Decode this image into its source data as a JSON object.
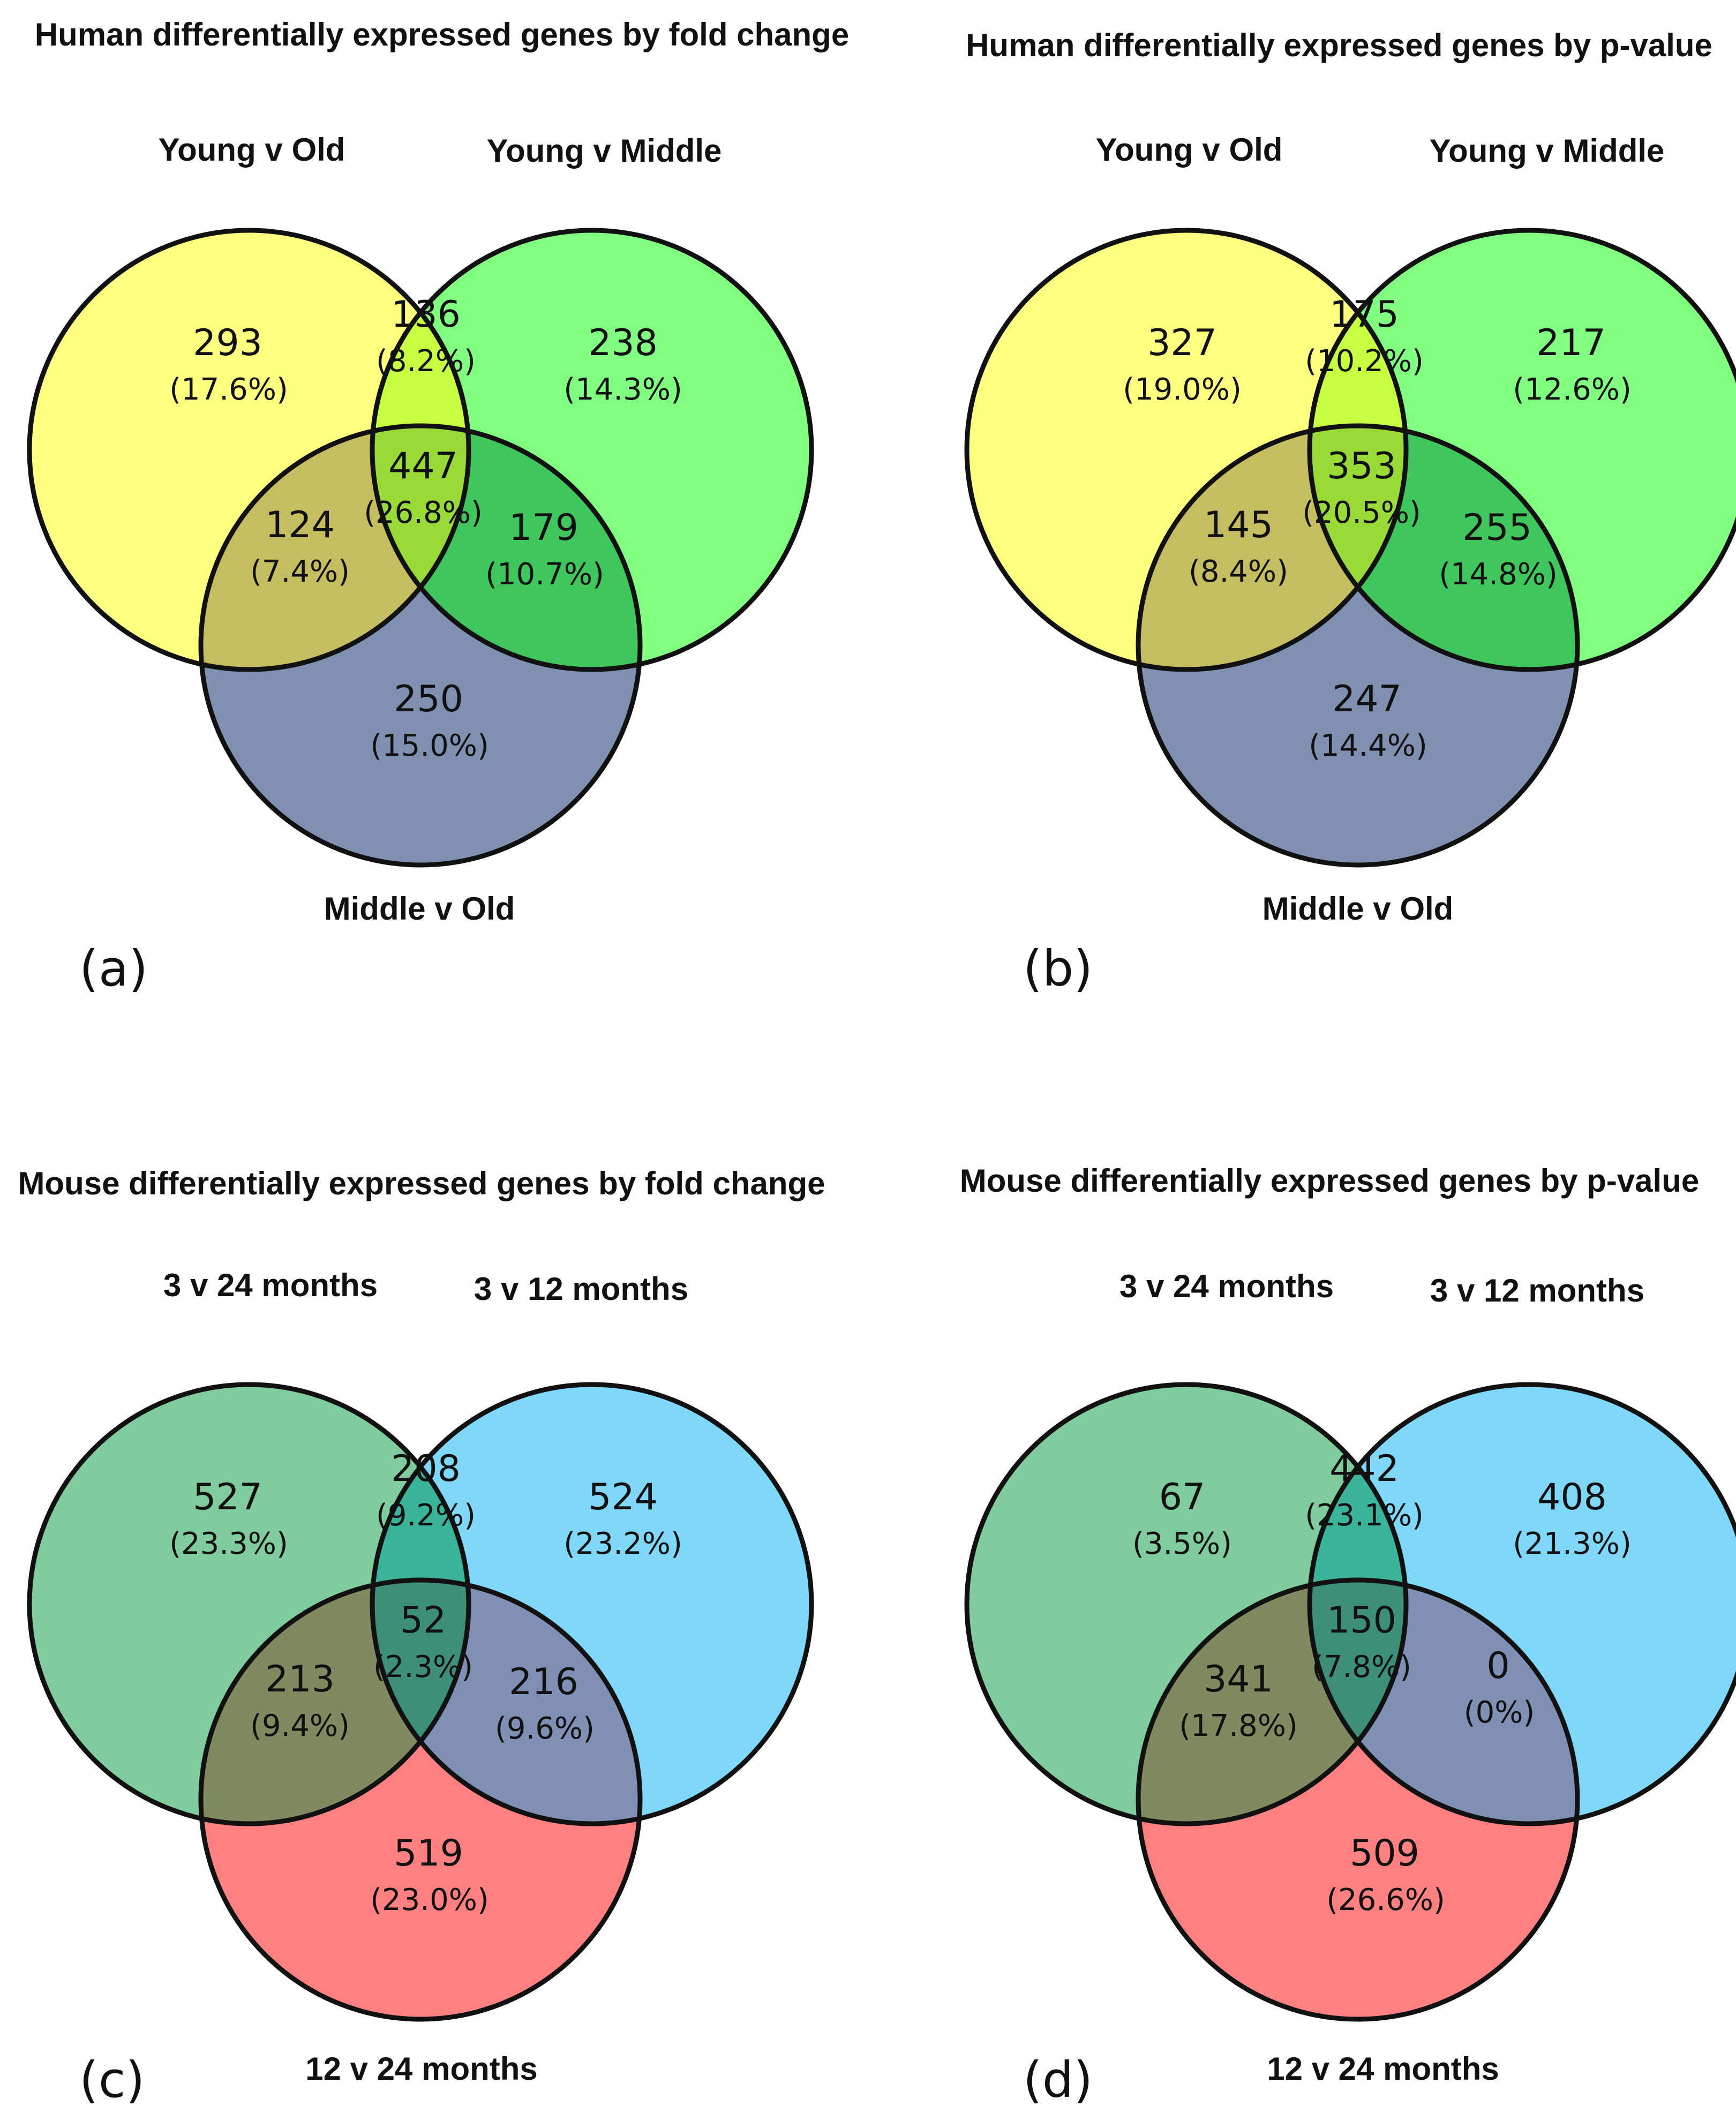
{
  "panels": [
    {
      "id": "a",
      "label": "(a)",
      "title": "Human differentially expressed genes by fold change",
      "sets": [
        {
          "name": "Young v Old",
          "color": "#ffff80"
        },
        {
          "name": "Young v Middle",
          "color": "#80ff80"
        },
        {
          "name": "Middle v Old",
          "color": "#8090b0"
        }
      ],
      "regions": {
        "a_only": {
          "count": "293",
          "pct": "(17.6%)"
        },
        "b_only": {
          "count": "238",
          "pct": "(14.3%)"
        },
        "c_only": {
          "count": "250",
          "pct": "(15.0%)"
        },
        "ab": {
          "count": "136",
          "pct": "(8.2%)"
        },
        "ac": {
          "count": "124",
          "pct": "(7.4%)"
        },
        "bc": {
          "count": "179",
          "pct": "(10.7%)"
        },
        "abc": {
          "count": "447",
          "pct": "(26.8%)"
        }
      }
    },
    {
      "id": "b",
      "label": "(b)",
      "title": "Human differentially expressed genes by p-value",
      "sets": [
        {
          "name": "Young v Old",
          "color": "#ffff80"
        },
        {
          "name": "Young v Middle",
          "color": "#80ff80"
        },
        {
          "name": "Middle v Old",
          "color": "#8090b0"
        }
      ],
      "regions": {
        "a_only": {
          "count": "327",
          "pct": "(19.0%)"
        },
        "b_only": {
          "count": "217",
          "pct": "(12.6%)"
        },
        "c_only": {
          "count": "247",
          "pct": "(14.4%)"
        },
        "ab": {
          "count": "175",
          "pct": "(10.2%)"
        },
        "ac": {
          "count": "145",
          "pct": "(8.4%)"
        },
        "bc": {
          "count": "255",
          "pct": "(14.8%)"
        },
        "abc": {
          "count": "353",
          "pct": "(20.5%)"
        }
      }
    },
    {
      "id": "c",
      "label": "(c)",
      "title": "Mouse differentially expressed genes by fold change",
      "sets": [
        {
          "name": "3 v 24 months",
          "color": "#80cc9e"
        },
        {
          "name": "3 v 12 months",
          "color": "#80d8f8"
        },
        {
          "name": "12 v 24 months",
          "color": "#ff8080"
        }
      ],
      "regions": {
        "a_only": {
          "count": "527",
          "pct": "(23.3%)"
        },
        "b_only": {
          "count": "524",
          "pct": "(23.2%)"
        },
        "c_only": {
          "count": "519",
          "pct": "(23.0%)"
        },
        "ab": {
          "count": "208",
          "pct": "(9.2%)"
        },
        "ac": {
          "count": "213",
          "pct": "(9.4%)"
        },
        "bc": {
          "count": "216",
          "pct": "(9.6%)"
        },
        "abc": {
          "count": "52",
          "pct": "(2.3%)"
        }
      }
    },
    {
      "id": "d",
      "label": "(d)",
      "title": "Mouse differentially expressed genes by p-value",
      "sets": [
        {
          "name": "3 v 24 months",
          "color": "#80cc9e"
        },
        {
          "name": "3 v 12 months",
          "color": "#80d8f8"
        },
        {
          "name": "12 v 24 months",
          "color": "#ff8080"
        }
      ],
      "regions": {
        "a_only": {
          "count": "67",
          "pct": "(3.5%)"
        },
        "b_only": {
          "count": "408",
          "pct": "(21.3%)"
        },
        "c_only": {
          "count": "509",
          "pct": "(26.6%)"
        },
        "ab": {
          "count": "442",
          "pct": "(23.1%)"
        },
        "ac": {
          "count": "341",
          "pct": "(17.8%)"
        },
        "bc": {
          "count": "0",
          "pct": "(0%)"
        },
        "abc": {
          "count": "150",
          "pct": "(7.8%)"
        }
      }
    }
  ]
}
